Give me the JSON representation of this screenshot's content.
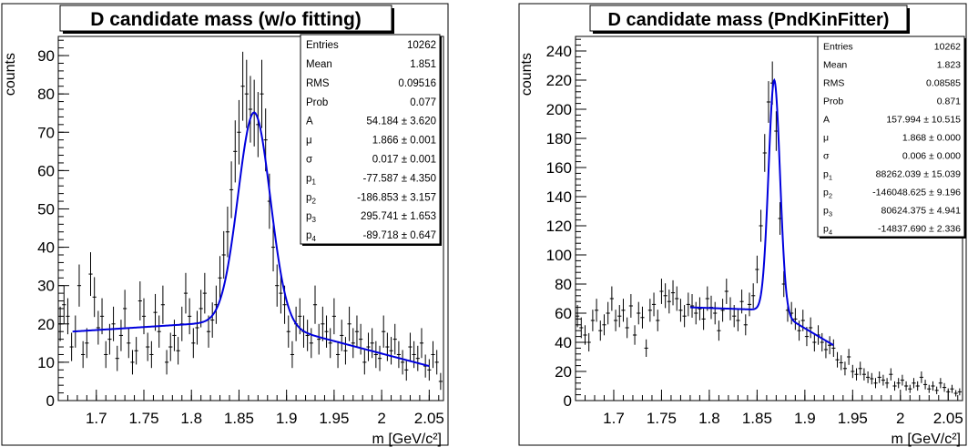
{
  "chart_data": [
    {
      "type": "scatter",
      "title": "D candidate mass (w/o fitting)",
      "xlabel": "m [GeV/c²]",
      "ylabel": "counts",
      "xlim": [
        1.66,
        2.065
      ],
      "ylim": [
        0,
        95
      ],
      "xticks": [
        "1.7",
        "1.75",
        "1.8",
        "1.85",
        "1.9",
        "1.95",
        "2",
        "2.05"
      ],
      "yticks": [
        "0",
        "10",
        "20",
        "30",
        "40",
        "50",
        "60",
        "70",
        "80",
        "90"
      ],
      "stats": [
        {
          "label": "Entries",
          "value": "10262"
        },
        {
          "label": "Mean",
          "value": "1.851"
        },
        {
          "label": "RMS",
          "value": "0.09516"
        },
        {
          "label": "Prob",
          "value": "0.077"
        },
        {
          "label": "A",
          "value": "54.184 ± 3.620"
        },
        {
          "label": "μ",
          "value": "1.866 ± 0.001"
        },
        {
          "label": "σ",
          "value": "0.017 ± 0.001"
        },
        {
          "label": "p",
          "sub": "1",
          "value": "-77.587 ± 4.350"
        },
        {
          "label": "p",
          "sub": "2",
          "value": "-186.853 ± 3.157"
        },
        {
          "label": "p",
          "sub": "3",
          "value": "295.741 ± 1.653"
        },
        {
          "label": "p",
          "sub": "4",
          "value": "-89.718 ± 0.647"
        }
      ],
      "fit": {
        "range": [
          1.675,
          2.05
        ],
        "A": 54.184,
        "mu": 1.866,
        "sigma": 0.017,
        "bkg_at_range_start": 18,
        "bkg_at_peak": 21,
        "bkg_at_range_end": 9,
        "color": "#0000dd"
      },
      "series": [
        {
          "bin_width": 0.004,
          "x": [
            1.662,
            1.666,
            1.67,
            1.674,
            1.678,
            1.682,
            1.686,
            1.69,
            1.694,
            1.698,
            1.702,
            1.706,
            1.71,
            1.714,
            1.718,
            1.722,
            1.726,
            1.73,
            1.734,
            1.738,
            1.742,
            1.746,
            1.75,
            1.754,
            1.758,
            1.762,
            1.766,
            1.77,
            1.774,
            1.778,
            1.782,
            1.786,
            1.79,
            1.794,
            1.798,
            1.802,
            1.806,
            1.81,
            1.814,
            1.818,
            1.822,
            1.826,
            1.83,
            1.834,
            1.838,
            1.842,
            1.846,
            1.85,
            1.854,
            1.858,
            1.862,
            1.866,
            1.87,
            1.874,
            1.878,
            1.882,
            1.886,
            1.89,
            1.894,
            1.898,
            1.902,
            1.906,
            1.91,
            1.914,
            1.918,
            1.922,
            1.926,
            1.93,
            1.934,
            1.938,
            1.942,
            1.946,
            1.95,
            1.954,
            1.958,
            1.962,
            1.966,
            1.97,
            1.974,
            1.978,
            1.982,
            1.986,
            1.99,
            1.994,
            1.998,
            2.002,
            2.006,
            2.01,
            2.014,
            2.018,
            2.022,
            2.026,
            2.03,
            2.034,
            2.038,
            2.042,
            2.046,
            2.05,
            2.054,
            2.058,
            2.062
          ],
          "y": [
            20,
            25,
            22,
            14,
            18,
            30,
            12,
            15,
            33,
            27,
            19,
            22,
            12,
            16,
            20,
            11,
            17,
            24,
            15,
            10,
            13,
            26,
            22,
            14,
            12,
            23,
            18,
            25,
            10,
            14,
            17,
            13,
            20,
            28,
            22,
            15,
            19,
            24,
            28,
            18,
            21,
            25,
            32,
            38,
            44,
            55,
            65,
            70,
            82,
            80,
            76,
            75,
            72,
            80,
            68,
            52,
            40,
            30,
            28,
            25,
            18,
            12,
            20,
            22,
            18,
            17,
            15,
            25,
            16,
            20,
            18,
            15,
            22,
            12,
            17,
            13,
            20,
            15,
            18,
            16,
            10,
            14,
            15,
            12,
            11,
            18,
            14,
            13,
            16,
            12,
            10,
            8,
            14,
            12,
            11,
            15,
            9,
            8,
            12,
            10,
            5
          ],
          "errors": [
            4.5,
            5,
            4.7,
            3.7,
            4.2,
            5.5,
            3.5,
            3.9,
            5.7,
            5.2,
            4.4,
            4.7,
            3.5,
            4,
            4.5,
            3.3,
            4.1,
            4.9,
            3.9,
            3.2,
            3.6,
            5.1,
            4.7,
            3.7,
            3.5,
            4.8,
            4.2,
            5,
            3.2,
            3.7,
            4.1,
            3.6,
            4.5,
            5.3,
            4.7,
            3.9,
            4.4,
            4.9,
            5.3,
            4.2,
            4.6,
            5,
            5.7,
            6.2,
            6.6,
            7.4,
            8.1,
            8.4,
            9,
            8.9,
            8.7,
            8.7,
            8.5,
            8.9,
            8.2,
            7.2,
            6.3,
            5.5,
            5.3,
            5,
            4.2,
            3.5,
            4.5,
            4.7,
            4.2,
            4.1,
            3.9,
            5,
            4,
            4.5,
            4.2,
            3.9,
            4.7,
            3.5,
            4.1,
            3.6,
            4.5,
            3.9,
            4.2,
            4,
            3.2,
            3.7,
            3.9,
            3.5,
            3.3,
            4.2,
            3.7,
            3.6,
            4,
            3.5,
            3.2,
            2.8,
            3.7,
            3.5,
            3.3,
            3.9,
            3,
            2.8,
            3.5,
            3.2,
            2.2
          ]
        }
      ]
    },
    {
      "type": "scatter",
      "title": "D candidate mass (PndKinFitter)",
      "xlabel": "m [GeV/c²]",
      "ylabel": "counts",
      "xlim": [
        1.66,
        2.065
      ],
      "ylim": [
        0,
        250
      ],
      "xticks": [
        "1.7",
        "1.75",
        "1.8",
        "1.85",
        "1.9",
        "1.95",
        "2",
        "2.05"
      ],
      "yticks": [
        "0",
        "20",
        "40",
        "60",
        "80",
        "100",
        "120",
        "140",
        "160",
        "180",
        "200",
        "220",
        "240"
      ],
      "stats": [
        {
          "label": "Entries",
          "value": "10262"
        },
        {
          "label": "Mean",
          "value": "1.823"
        },
        {
          "label": "RMS",
          "value": "0.08585"
        },
        {
          "label": "Prob",
          "value": "0.871"
        },
        {
          "label": "A",
          "value": "157.994 ± 10.515"
        },
        {
          "label": "μ",
          "value": "1.868 ± 0.000"
        },
        {
          "label": "σ",
          "value": "0.006 ± 0.000"
        },
        {
          "label": "p",
          "sub": "1",
          "value": "88262.039 ± 15.039"
        },
        {
          "label": "p",
          "sub": "2",
          "value": "-146048.625 ± 9.196"
        },
        {
          "label": "p",
          "sub": "3",
          "value": "80624.375 ± 4.941"
        },
        {
          "label": "p",
          "sub": "4",
          "value": "-14837.690 ± 2.336"
        }
      ],
      "fit": {
        "range": [
          1.78,
          1.93
        ],
        "A": 157.994,
        "mu": 1.868,
        "sigma": 0.006,
        "bkg_at_range_start": 64,
        "bkg_at_peak": 62,
        "bkg_at_range_end": 38,
        "color": "#0000dd"
      },
      "series": [
        {
          "bin_width": 0.004,
          "x": [
            1.662,
            1.666,
            1.67,
            1.674,
            1.678,
            1.682,
            1.686,
            1.69,
            1.694,
            1.698,
            1.702,
            1.706,
            1.71,
            1.714,
            1.718,
            1.722,
            1.726,
            1.73,
            1.734,
            1.738,
            1.742,
            1.746,
            1.75,
            1.754,
            1.758,
            1.762,
            1.766,
            1.77,
            1.774,
            1.778,
            1.782,
            1.786,
            1.79,
            1.794,
            1.798,
            1.802,
            1.806,
            1.81,
            1.814,
            1.818,
            1.822,
            1.826,
            1.83,
            1.834,
            1.838,
            1.842,
            1.846,
            1.85,
            1.854,
            1.858,
            1.862,
            1.866,
            1.87,
            1.874,
            1.878,
            1.882,
            1.886,
            1.89,
            1.894,
            1.898,
            1.902,
            1.906,
            1.91,
            1.914,
            1.918,
            1.922,
            1.926,
            1.93,
            1.934,
            1.938,
            1.942,
            1.946,
            1.95,
            1.954,
            1.958,
            1.962,
            1.966,
            1.97,
            1.974,
            1.978,
            1.982,
            1.986,
            1.99,
            1.994,
            1.998,
            2.002,
            2.006,
            2.01,
            2.014,
            2.018,
            2.022,
            2.026,
            2.03,
            2.034,
            2.038,
            2.042,
            2.046,
            2.05,
            2.054,
            2.058,
            2.062
          ],
          "y": [
            58,
            50,
            45,
            40,
            55,
            62,
            48,
            52,
            60,
            70,
            55,
            58,
            62,
            50,
            65,
            45,
            60,
            57,
            36,
            62,
            66,
            55,
            75,
            72,
            68,
            74,
            70,
            62,
            58,
            66,
            65,
            60,
            63,
            56,
            70,
            64,
            60,
            48,
            62,
            75,
            63,
            58,
            55,
            68,
            52,
            66,
            72,
            90,
            120,
            170,
            205,
            218,
            185,
            125,
            80,
            62,
            60,
            56,
            48,
            55,
            44,
            50,
            40,
            45,
            40,
            35,
            38,
            36,
            28,
            26,
            22,
            30,
            20,
            18,
            22,
            18,
            16,
            15,
            12,
            16,
            14,
            12,
            18,
            10,
            12,
            14,
            10,
            8,
            12,
            10,
            16,
            11,
            8,
            10,
            7,
            12,
            9,
            6,
            8,
            5,
            6
          ],
          "errors": [
            7.6,
            7.1,
            6.7,
            6.3,
            7.4,
            7.9,
            6.9,
            7.2,
            7.7,
            8.4,
            7.4,
            7.6,
            7.9,
            7.1,
            8.1,
            6.7,
            7.7,
            7.5,
            6,
            7.9,
            8.1,
            7.4,
            8.7,
            8.5,
            8.2,
            8.6,
            8.4,
            7.9,
            7.6,
            8.1,
            8.1,
            7.7,
            7.9,
            7.5,
            8.4,
            8,
            7.7,
            6.9,
            7.9,
            8.7,
            7.9,
            7.6,
            7.4,
            8.2,
            7.2,
            8.1,
            8.5,
            9.5,
            11,
            13,
            14.3,
            14.8,
            13.6,
            11.2,
            8.9,
            7.9,
            7.7,
            7.5,
            6.9,
            7.4,
            6.6,
            7.1,
            6.3,
            6.7,
            6.3,
            5.9,
            6.2,
            6,
            5.3,
            5.1,
            4.7,
            5.5,
            4.5,
            4.2,
            4.7,
            4.2,
            4,
            3.9,
            3.5,
            4,
            3.7,
            3.5,
            4.2,
            3.2,
            3.5,
            3.7,
            3.2,
            2.8,
            3.5,
            3.2,
            4,
            3.3,
            2.8,
            3.2,
            2.6,
            3.5,
            3,
            2.4,
            2.8,
            2.2,
            2.4
          ]
        }
      ]
    }
  ]
}
